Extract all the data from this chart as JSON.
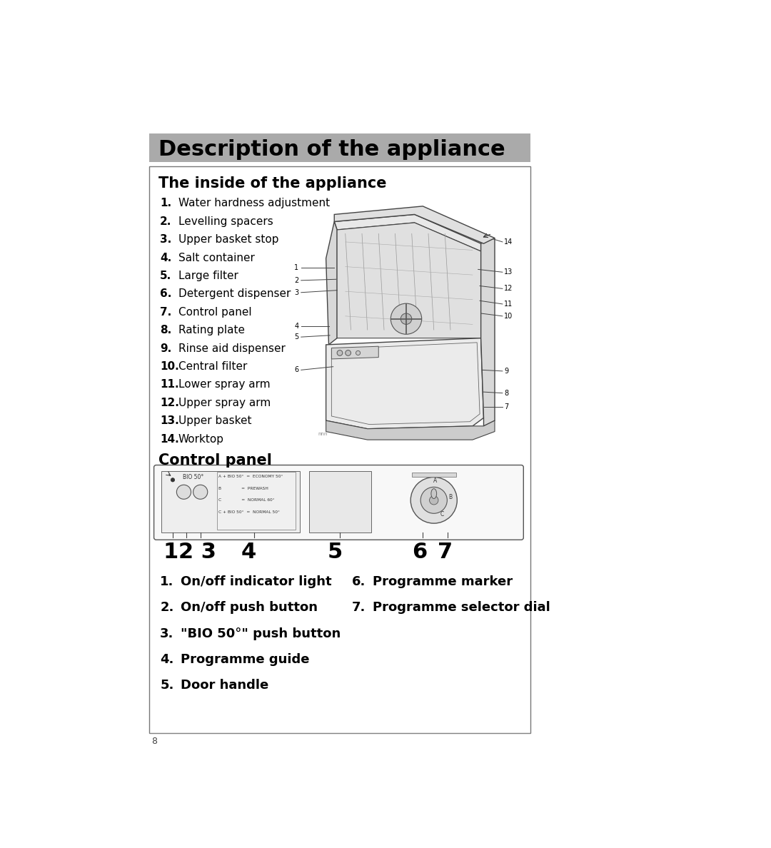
{
  "title": "Description of the appliance",
  "title_bg": "#aaaaaa",
  "section1_title": "The inside of the appliance",
  "section2_title": "Control panel",
  "inside_items": [
    [
      "1.",
      "Water hardness adjustment"
    ],
    [
      "2.",
      "Levelling spacers"
    ],
    [
      "3.",
      "Upper basket stop"
    ],
    [
      "4.",
      "Salt container"
    ],
    [
      "5.",
      "Large filter"
    ],
    [
      "6.",
      "Detergent dispenser"
    ],
    [
      "7.",
      "Control panel"
    ],
    [
      "8.",
      "Rating plate"
    ],
    [
      "9.",
      "Rinse aid dispenser"
    ],
    [
      "10.",
      "Central filter"
    ],
    [
      "11.",
      "Lower spray arm"
    ],
    [
      "12.",
      "Upper spray arm"
    ],
    [
      "13.",
      "Upper basket"
    ],
    [
      "14.",
      "Worktop"
    ]
  ],
  "control_items_left": [
    [
      "1.",
      "On/off indicator light"
    ],
    [
      "2.",
      "On/off push button"
    ],
    [
      "3.",
      "\"BIO 50°\" push button"
    ],
    [
      "4.",
      "Programme guide"
    ],
    [
      "5.",
      "Door handle"
    ]
  ],
  "control_items_right": [
    [
      "6.",
      "Programme marker"
    ],
    [
      "7.",
      "Programme selector dial"
    ]
  ],
  "page_number": "8",
  "bg_color": "#ffffff",
  "border_color": "#555555",
  "text_color": "#000000"
}
